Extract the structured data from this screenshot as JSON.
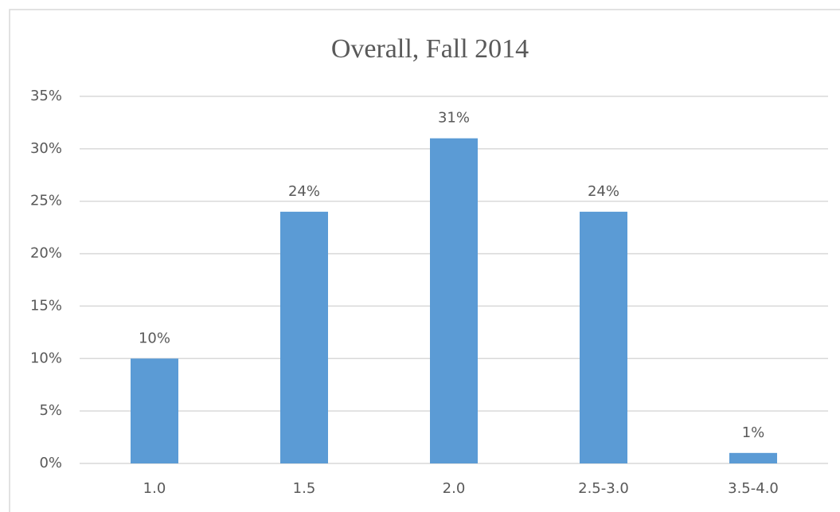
{
  "chart_data": {
    "type": "bar",
    "title": "Overall, Fall 2014",
    "categories": [
      "1.0",
      "1.5",
      "2.0",
      "2.5-3.0",
      "3.5-4.0"
    ],
    "values": [
      10,
      24,
      31,
      24,
      1
    ],
    "value_labels": [
      "10%",
      "24%",
      "31%",
      "24%",
      "1%"
    ],
    "color": "#5b9bd5",
    "ylim": [
      0,
      35
    ],
    "yticks": [
      {
        "value": 0,
        "label": "0%"
      },
      {
        "value": 5,
        "label": "5%"
      },
      {
        "value": 10,
        "label": "10%"
      },
      {
        "value": 15,
        "label": "15%"
      },
      {
        "value": 20,
        "label": "20%"
      },
      {
        "value": 25,
        "label": "25%"
      },
      {
        "value": 30,
        "label": "30%"
      },
      {
        "value": 35,
        "label": "35%"
      }
    ],
    "grid": true
  }
}
